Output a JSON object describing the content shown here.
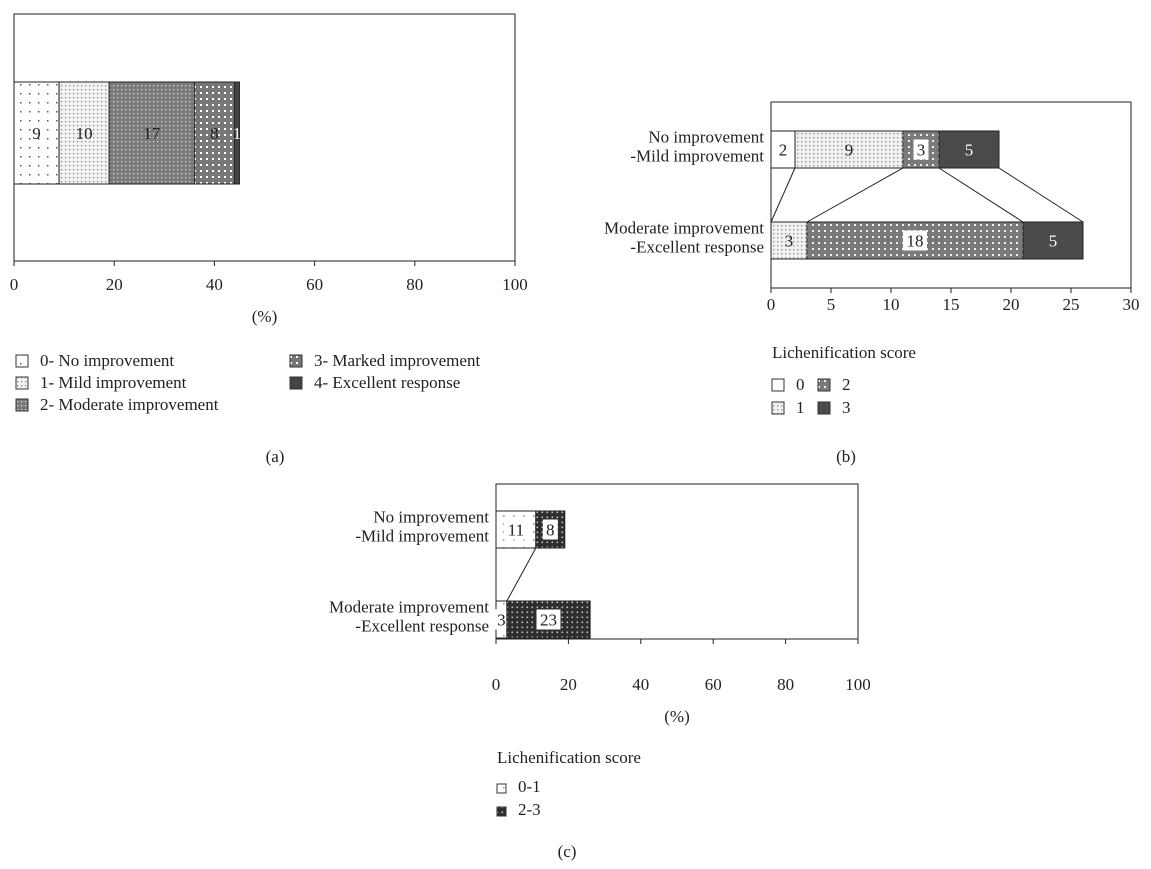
{
  "chart_data": [
    {
      "id": "a",
      "type": "bar",
      "stacked": true,
      "orientation": "horizontal",
      "panel_label": "(a)",
      "title": "",
      "xlabel": "(%)",
      "xlim": [
        0,
        100
      ],
      "xticks": [
        "0",
        "20",
        "40",
        "60",
        "80",
        "100"
      ],
      "categories": [
        ""
      ],
      "series": [
        {
          "name": "0- No improvement",
          "pattern": "p-a0",
          "values": [
            9
          ]
        },
        {
          "name": "1- Mild improvement",
          "pattern": "p-a1",
          "values": [
            10
          ]
        },
        {
          "name": "2- Moderate improvement",
          "pattern": "p-a2",
          "values": [
            17
          ]
        },
        {
          "name": "3- Marked improvement",
          "pattern": "p-a3",
          "values": [
            8
          ]
        },
        {
          "name": "4- Excellent response",
          "pattern": "p-a4",
          "values": [
            1
          ]
        }
      ],
      "legend": {
        "title": "",
        "placement": "bottom"
      }
    },
    {
      "id": "b",
      "type": "bar",
      "stacked": true,
      "orientation": "horizontal",
      "panel_label": "(b)",
      "title": "",
      "xlabel": "",
      "xlim": [
        0,
        30
      ],
      "xticks": [
        "0",
        "5",
        "10",
        "15",
        "20",
        "25",
        "30"
      ],
      "categories": [
        [
          "No improvement",
          "-Mild improvement"
        ],
        [
          "Moderate improvement",
          "-Excellent response"
        ]
      ],
      "series": [
        {
          "name": "0",
          "pattern": "p-b0",
          "values": [
            2,
            0
          ]
        },
        {
          "name": "1",
          "pattern": "p-b1",
          "values": [
            9,
            3
          ]
        },
        {
          "name": "2",
          "pattern": "p-b2",
          "values": [
            3,
            18
          ]
        },
        {
          "name": "3",
          "pattern": "p-b3",
          "values": [
            5,
            5
          ]
        }
      ],
      "legend": {
        "title": "Lichenification score",
        "placement": "bottom"
      }
    },
    {
      "id": "c",
      "type": "bar",
      "stacked": true,
      "orientation": "horizontal",
      "panel_label": "(c)",
      "title": "",
      "xlabel": "(%)",
      "xlim": [
        0,
        100
      ],
      "xticks": [
        "0",
        "20",
        "40",
        "60",
        "80",
        "100"
      ],
      "categories": [
        [
          "No improvement",
          "-Mild improvement"
        ],
        [
          "Moderate improvement",
          "-Excellent response"
        ]
      ],
      "series": [
        {
          "name": "0-1",
          "pattern": "p-c0",
          "values": [
            11,
            3
          ]
        },
        {
          "name": "2-3",
          "pattern": "p-c1",
          "values": [
            8,
            23
          ]
        }
      ],
      "legend": {
        "title": "Lichenification score",
        "placement": "bottom"
      }
    }
  ]
}
